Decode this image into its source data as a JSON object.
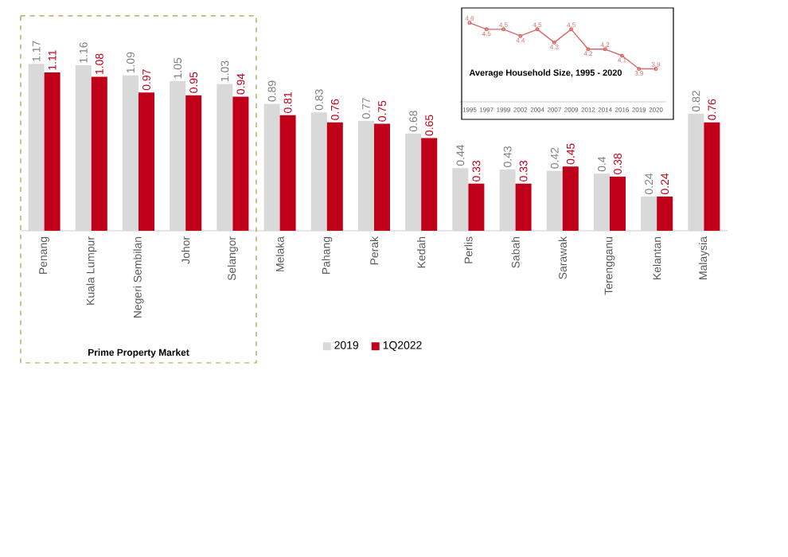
{
  "chart_data": [
    {
      "type": "bar",
      "categories": [
        "Penang",
        "Kuala Lumpur",
        "Negeri Sembilan",
        "Johor",
        "Selangor",
        "Melaka",
        "Pahang",
        "Perak",
        "Kedah",
        "Perlis",
        "Sabah",
        "Sarawak",
        "Terengganu",
        "Kelantan",
        "Malaysia"
      ],
      "series": [
        {
          "name": "2019",
          "color": "#d9d9d9",
          "values": [
            1.17,
            1.16,
            1.09,
            1.05,
            1.03,
            0.89,
            0.83,
            0.77,
            0.68,
            0.44,
            0.43,
            0.42,
            0.4,
            0.24,
            0.82
          ]
        },
        {
          "name": "1Q2022",
          "color": "#c00018",
          "values": [
            1.11,
            1.08,
            0.97,
            0.95,
            0.94,
            0.81,
            0.76,
            0.75,
            0.65,
            0.33,
            0.33,
            0.45,
            0.38,
            0.24,
            0.76
          ]
        }
      ],
      "tick_labels": "x",
      "data_labels": true,
      "legend": "bottom",
      "annotations": [
        "Prime Property Market"
      ]
    },
    {
      "type": "line",
      "title": "Average Household Size, 1995 - 2020",
      "categories": [
        "1995",
        "1997",
        "1999",
        "2002",
        "2004",
        "2007",
        "2009",
        "2012",
        "2014",
        "2016",
        "2019",
        "2020"
      ],
      "series": [
        {
          "color": "#d46a6a",
          "values": [
            4.6,
            4.5,
            4.5,
            4.4,
            4.5,
            4.3,
            4.5,
            4.2,
            4.2,
            4.1,
            3.9,
            3.9
          ]
        }
      ],
      "ylim": [
        3.4,
        4.8
      ],
      "tick_labels": "x",
      "data_labels": true,
      "marker": "circle"
    }
  ]
}
